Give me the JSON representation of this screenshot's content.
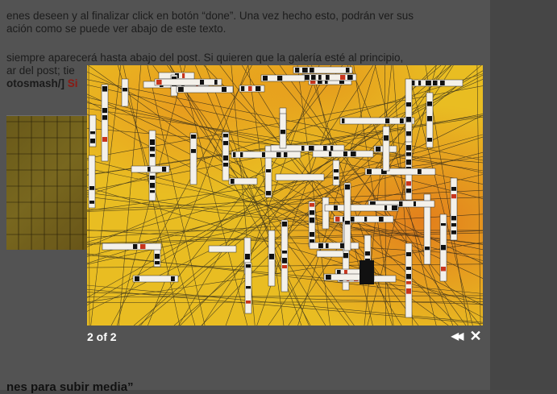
{
  "post": {
    "line1": "enes deseen y al finalizar click en botón “done”. Una vez hecho esto, podrán ver sus",
    "line2": "ación  como se puede ver abajo de este texto.",
    "line3": "siempre aparecerá hasta abajo del post. Si quieren que la galería esté al principio,",
    "line4": "ar del post; tie",
    "line5_bold": "otosmash/]",
    "line5_red": "Si",
    "heading": "nes para subir media”"
  },
  "lightbox": {
    "counter": "2 of 2",
    "prev_glyph": "◀◀",
    "close_glyph": "✕",
    "image_colors": {
      "base": "#e8b91e",
      "hot": "#e0701c",
      "ink": "#111111"
    }
  }
}
